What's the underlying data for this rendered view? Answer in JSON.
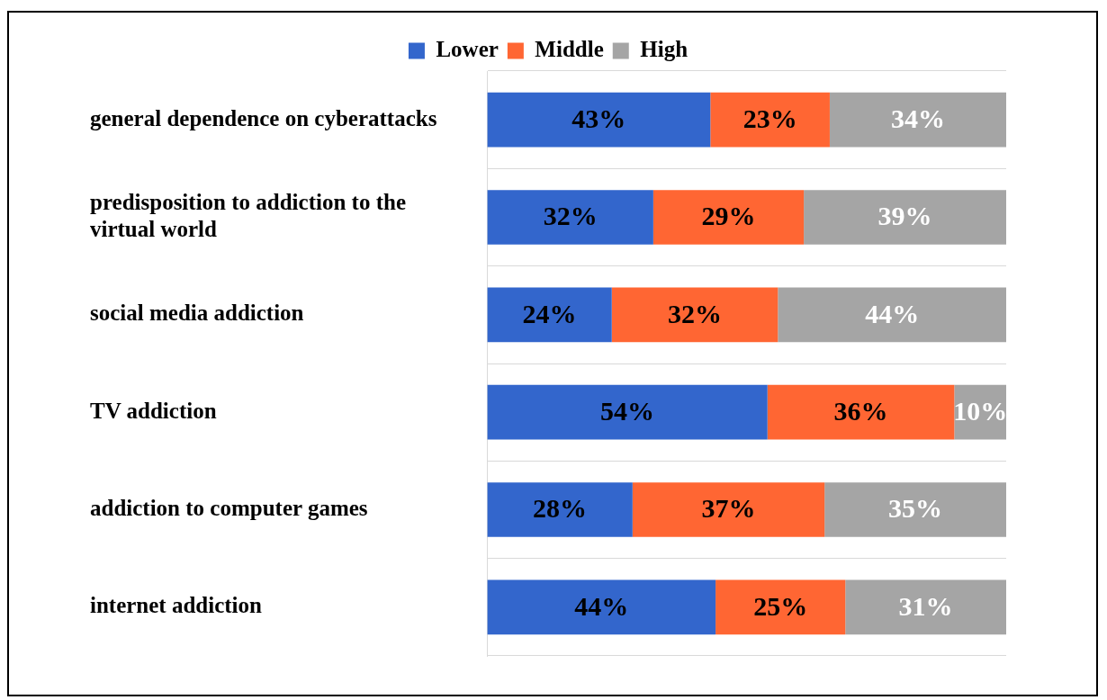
{
  "chart_data": {
    "type": "bar",
    "orientation": "horizontal",
    "stacked": true,
    "legend": "top",
    "grid": "y",
    "tick_labels": "y",
    "categories": [
      "general dependence on cyberattacks",
      "predisposition to addiction to the virtual world",
      "social media addiction",
      "TV addiction",
      "addiction to computer games",
      "internet addiction"
    ],
    "series": [
      {
        "name": "Lower",
        "color": "#3366cc",
        "values": [
          43,
          32,
          24,
          54,
          28,
          44
        ],
        "value_labels": [
          "43%",
          "32%",
          "24%",
          "54%",
          "28%",
          "44%"
        ]
      },
      {
        "name": "Middle",
        "color": "#ff6633",
        "values": [
          23,
          29,
          32,
          36,
          37,
          25
        ],
        "value_labels": [
          "23%",
          "29%",
          "32%",
          "36%",
          "37%",
          "25%"
        ]
      },
      {
        "name": "High",
        "color": "#a5a5a5",
        "values": [
          34,
          39,
          44,
          10,
          35,
          31
        ],
        "value_labels": [
          "34%",
          "39%",
          "44%",
          "10%",
          "35%",
          "31%"
        ]
      }
    ]
  }
}
